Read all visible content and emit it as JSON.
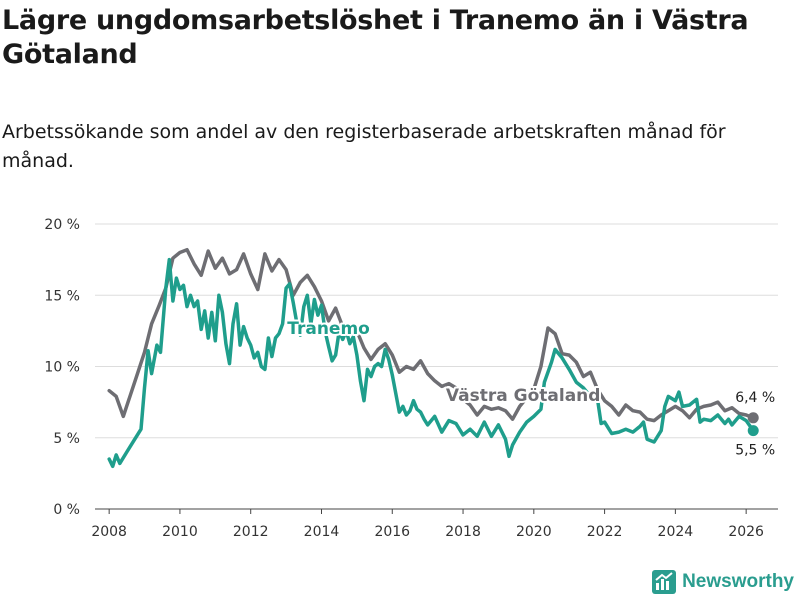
{
  "title": "Lägre ungdomsarbetslöshet i Tranemo än i Västra Götaland",
  "subtitle": "Arbetssökande som andel av den registerbaserade arbetskraften månad för månad.",
  "brand": {
    "name": "Newsworthy",
    "icon": "newsworthy-logo-icon",
    "color": "#2a9d8f"
  },
  "chart_data": {
    "type": "line",
    "title": "Lägre ungdomsarbetslöshet i Tranemo än i Västra Götaland",
    "xlabel": "",
    "ylabel": "",
    "xlim": [
      2007.6,
      2026.9
    ],
    "ylim": [
      0,
      20
    ],
    "grid": true,
    "x_ticks": [
      2008,
      2010,
      2012,
      2014,
      2016,
      2018,
      2020,
      2022,
      2024,
      2026
    ],
    "x_tick_labels": [
      "2008",
      "2010",
      "2012",
      "2014",
      "2016",
      "2018",
      "2020",
      "2022",
      "2024",
      "2026"
    ],
    "y_ticks": [
      0,
      5,
      10,
      15,
      20
    ],
    "y_tick_labels": [
      "0 %",
      "5 %",
      "10 %",
      "15 %",
      "20 %"
    ],
    "series": [
      {
        "name": "Västra Götaland",
        "color": "#6e6e73",
        "end_label": "6,4 %",
        "points": [
          [
            2008.0,
            8.3
          ],
          [
            2008.2,
            7.9
          ],
          [
            2008.4,
            6.5
          ],
          [
            2008.6,
            8.0
          ],
          [
            2008.8,
            9.5
          ],
          [
            2009.0,
            11.0
          ],
          [
            2009.2,
            13.0
          ],
          [
            2009.4,
            14.2
          ],
          [
            2009.6,
            15.5
          ],
          [
            2009.8,
            17.6
          ],
          [
            2010.0,
            18.0
          ],
          [
            2010.2,
            18.2
          ],
          [
            2010.4,
            17.2
          ],
          [
            2010.6,
            16.4
          ],
          [
            2010.8,
            18.1
          ],
          [
            2011.0,
            16.9
          ],
          [
            2011.2,
            17.6
          ],
          [
            2011.4,
            16.5
          ],
          [
            2011.6,
            16.8
          ],
          [
            2011.8,
            17.9
          ],
          [
            2012.0,
            16.5
          ],
          [
            2012.2,
            15.4
          ],
          [
            2012.4,
            17.9
          ],
          [
            2012.6,
            16.7
          ],
          [
            2012.8,
            17.5
          ],
          [
            2013.0,
            16.8
          ],
          [
            2013.2,
            15.0
          ],
          [
            2013.4,
            15.9
          ],
          [
            2013.6,
            16.4
          ],
          [
            2013.8,
            15.6
          ],
          [
            2014.0,
            14.6
          ],
          [
            2014.2,
            13.2
          ],
          [
            2014.4,
            14.1
          ],
          [
            2014.6,
            12.8
          ],
          [
            2014.8,
            12.4
          ],
          [
            2015.0,
            12.5
          ],
          [
            2015.2,
            11.3
          ],
          [
            2015.4,
            10.5
          ],
          [
            2015.6,
            11.2
          ],
          [
            2015.8,
            11.6
          ],
          [
            2016.0,
            10.8
          ],
          [
            2016.2,
            9.6
          ],
          [
            2016.4,
            10.0
          ],
          [
            2016.6,
            9.8
          ],
          [
            2016.8,
            10.4
          ],
          [
            2017.0,
            9.5
          ],
          [
            2017.2,
            9.0
          ],
          [
            2017.4,
            8.6
          ],
          [
            2017.6,
            8.8
          ],
          [
            2017.8,
            8.5
          ],
          [
            2018.0,
            7.7
          ],
          [
            2018.2,
            7.3
          ],
          [
            2018.4,
            6.6
          ],
          [
            2018.6,
            7.2
          ],
          [
            2018.8,
            7.0
          ],
          [
            2019.0,
            7.1
          ],
          [
            2019.2,
            6.9
          ],
          [
            2019.4,
            6.3
          ],
          [
            2019.6,
            7.2
          ],
          [
            2019.8,
            7.8
          ],
          [
            2020.0,
            8.4
          ],
          [
            2020.2,
            10.0
          ],
          [
            2020.4,
            12.7
          ],
          [
            2020.6,
            12.3
          ],
          [
            2020.8,
            10.9
          ],
          [
            2021.0,
            10.8
          ],
          [
            2021.2,
            10.3
          ],
          [
            2021.4,
            9.3
          ],
          [
            2021.6,
            9.6
          ],
          [
            2021.8,
            8.4
          ],
          [
            2022.0,
            7.6
          ],
          [
            2022.2,
            7.2
          ],
          [
            2022.4,
            6.6
          ],
          [
            2022.6,
            7.3
          ],
          [
            2022.8,
            6.9
          ],
          [
            2023.0,
            6.8
          ],
          [
            2023.2,
            6.3
          ],
          [
            2023.4,
            6.2
          ],
          [
            2023.6,
            6.6
          ],
          [
            2023.8,
            6.9
          ],
          [
            2024.0,
            7.2
          ],
          [
            2024.2,
            6.9
          ],
          [
            2024.4,
            6.4
          ],
          [
            2024.6,
            7.0
          ],
          [
            2024.8,
            7.2
          ],
          [
            2025.0,
            7.3
          ],
          [
            2025.2,
            7.5
          ],
          [
            2025.4,
            6.9
          ],
          [
            2025.6,
            7.1
          ],
          [
            2025.8,
            6.7
          ],
          [
            2026.0,
            6.6
          ],
          [
            2026.2,
            6.4
          ]
        ]
      },
      {
        "name": "Tranemo",
        "color": "#1f9e8c",
        "end_label": "5,5 %",
        "points": [
          [
            2008.0,
            3.5
          ],
          [
            2008.1,
            3.0
          ],
          [
            2008.2,
            3.8
          ],
          [
            2008.3,
            3.2
          ],
          [
            2008.5,
            4.0
          ],
          [
            2008.7,
            4.8
          ],
          [
            2008.9,
            5.6
          ],
          [
            2009.0,
            8.5
          ],
          [
            2009.1,
            11.1
          ],
          [
            2009.2,
            9.5
          ],
          [
            2009.35,
            11.5
          ],
          [
            2009.45,
            11.0
          ],
          [
            2009.6,
            15.5
          ],
          [
            2009.7,
            17.5
          ],
          [
            2009.8,
            14.6
          ],
          [
            2009.9,
            16.2
          ],
          [
            2010.0,
            15.4
          ],
          [
            2010.1,
            15.7
          ],
          [
            2010.2,
            14.2
          ],
          [
            2010.3,
            15.0
          ],
          [
            2010.4,
            14.2
          ],
          [
            2010.5,
            14.6
          ],
          [
            2010.6,
            12.6
          ],
          [
            2010.7,
            13.9
          ],
          [
            2010.8,
            12.0
          ],
          [
            2010.9,
            13.8
          ],
          [
            2011.0,
            11.8
          ],
          [
            2011.1,
            15.0
          ],
          [
            2011.2,
            13.8
          ],
          [
            2011.3,
            11.6
          ],
          [
            2011.4,
            10.2
          ],
          [
            2011.5,
            13.0
          ],
          [
            2011.6,
            14.4
          ],
          [
            2011.7,
            11.5
          ],
          [
            2011.8,
            12.8
          ],
          [
            2011.9,
            12.0
          ],
          [
            2012.0,
            11.5
          ],
          [
            2012.1,
            10.6
          ],
          [
            2012.2,
            11.0
          ],
          [
            2012.3,
            10.0
          ],
          [
            2012.4,
            9.8
          ],
          [
            2012.5,
            12.0
          ],
          [
            2012.6,
            10.7
          ],
          [
            2012.7,
            12.0
          ],
          [
            2012.8,
            12.3
          ],
          [
            2012.9,
            13.0
          ],
          [
            2013.0,
            15.5
          ],
          [
            2013.1,
            15.8
          ],
          [
            2013.2,
            14.5
          ],
          [
            2013.3,
            13.1
          ],
          [
            2013.4,
            12.2
          ],
          [
            2013.5,
            14.2
          ],
          [
            2013.6,
            15.0
          ],
          [
            2013.7,
            13.0
          ],
          [
            2013.8,
            14.7
          ],
          [
            2013.9,
            13.6
          ],
          [
            2014.0,
            14.3
          ],
          [
            2014.1,
            12.5
          ],
          [
            2014.2,
            11.4
          ],
          [
            2014.3,
            10.4
          ],
          [
            2014.4,
            10.8
          ],
          [
            2014.5,
            12.5
          ],
          [
            2014.6,
            11.9
          ],
          [
            2014.7,
            12.5
          ],
          [
            2014.8,
            11.6
          ],
          [
            2014.9,
            12.1
          ],
          [
            2015.0,
            10.8
          ],
          [
            2015.1,
            9.0
          ],
          [
            2015.2,
            7.6
          ],
          [
            2015.3,
            9.8
          ],
          [
            2015.4,
            9.3
          ],
          [
            2015.5,
            10.0
          ],
          [
            2015.6,
            10.2
          ],
          [
            2015.7,
            10.0
          ],
          [
            2015.8,
            11.2
          ],
          [
            2015.9,
            10.5
          ],
          [
            2016.0,
            9.4
          ],
          [
            2016.1,
            8.1
          ],
          [
            2016.2,
            6.8
          ],
          [
            2016.3,
            7.2
          ],
          [
            2016.4,
            6.6
          ],
          [
            2016.5,
            6.9
          ],
          [
            2016.6,
            7.6
          ],
          [
            2016.7,
            7.0
          ],
          [
            2016.8,
            6.8
          ],
          [
            2016.9,
            6.3
          ],
          [
            2017.0,
            5.9
          ],
          [
            2017.2,
            6.5
          ],
          [
            2017.4,
            5.4
          ],
          [
            2017.6,
            6.2
          ],
          [
            2017.8,
            6.0
          ],
          [
            2018.0,
            5.2
          ],
          [
            2018.2,
            5.6
          ],
          [
            2018.4,
            5.1
          ],
          [
            2018.6,
            6.1
          ],
          [
            2018.8,
            5.1
          ],
          [
            2019.0,
            5.9
          ],
          [
            2019.2,
            4.9
          ],
          [
            2019.3,
            3.7
          ],
          [
            2019.4,
            4.5
          ],
          [
            2019.6,
            5.4
          ],
          [
            2019.8,
            6.1
          ],
          [
            2020.0,
            6.5
          ],
          [
            2020.2,
            7.0
          ],
          [
            2020.3,
            8.9
          ],
          [
            2020.5,
            10.3
          ],
          [
            2020.6,
            11.2
          ],
          [
            2020.8,
            10.6
          ],
          [
            2021.0,
            9.8
          ],
          [
            2021.2,
            8.9
          ],
          [
            2021.4,
            8.5
          ],
          [
            2021.6,
            7.9
          ],
          [
            2021.8,
            7.7
          ],
          [
            2021.9,
            6.0
          ],
          [
            2022.0,
            6.1
          ],
          [
            2022.2,
            5.3
          ],
          [
            2022.4,
            5.4
          ],
          [
            2022.6,
            5.6
          ],
          [
            2022.8,
            5.4
          ],
          [
            2023.0,
            5.8
          ],
          [
            2023.1,
            6.1
          ],
          [
            2023.2,
            4.9
          ],
          [
            2023.4,
            4.7
          ],
          [
            2023.6,
            5.5
          ],
          [
            2023.7,
            7.2
          ],
          [
            2023.8,
            7.9
          ],
          [
            2024.0,
            7.6
          ],
          [
            2024.1,
            8.2
          ],
          [
            2024.2,
            7.2
          ],
          [
            2024.4,
            7.3
          ],
          [
            2024.6,
            7.7
          ],
          [
            2024.7,
            6.1
          ],
          [
            2024.8,
            6.3
          ],
          [
            2025.0,
            6.2
          ],
          [
            2025.2,
            6.6
          ],
          [
            2025.4,
            6.0
          ],
          [
            2025.5,
            6.3
          ],
          [
            2025.6,
            5.9
          ],
          [
            2025.8,
            6.5
          ],
          [
            2026.0,
            6.2
          ],
          [
            2026.2,
            5.5
          ]
        ]
      }
    ],
    "annotations": [
      {
        "series": "Tranemo",
        "text": "Tranemo",
        "x": 2014.2,
        "y": 12.7
      },
      {
        "series": "Västra Götaland",
        "text": "Västra Götaland",
        "x": 2019.7,
        "y": 8.0
      }
    ]
  }
}
